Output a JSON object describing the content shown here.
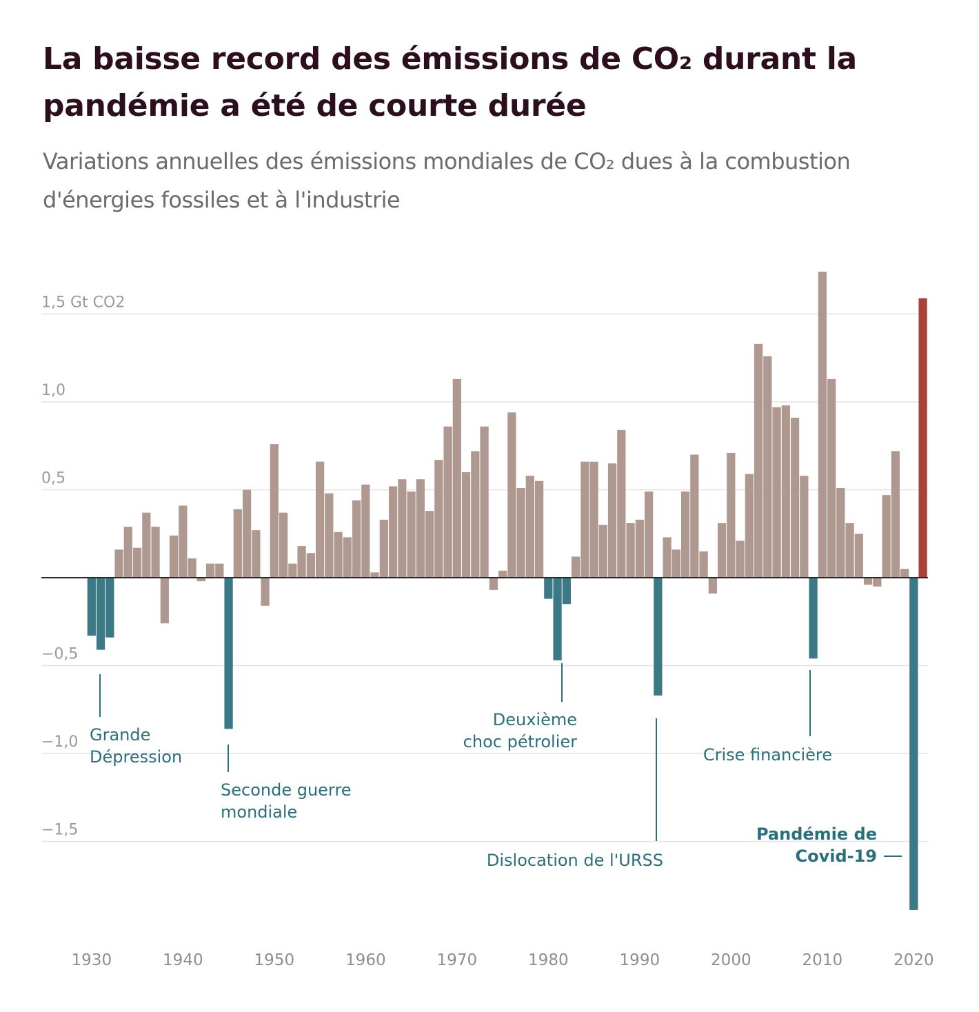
{
  "title": "La baisse record des émissions de CO₂ durant la pandémie a été de courte durée",
  "subtitle": "Variations annuelles des émissions mondiales de CO₂ dues à la combustion d'énergies fossiles et à l'industrie",
  "chart_data": {
    "type": "bar",
    "title": "La baisse record des émissions de CO₂ durant la pandémie a été de courte durée",
    "subtitle": "Variations annuelles des émissions mondiales de CO₂ dues à la combustion d'énergies fossiles et à l'industrie",
    "unit": "Gt CO2",
    "ylim": [
      -1.85,
      1.75
    ],
    "yticks": [
      {
        "value": 1.5,
        "label": "1,5 Gt CO2"
      },
      {
        "value": 1.0,
        "label": "1,0"
      },
      {
        "value": 0.5,
        "label": "0,5"
      },
      {
        "value": -0.5,
        "label": "−0,5"
      },
      {
        "value": -1.0,
        "label": "−1,0"
      },
      {
        "value": -1.5,
        "label": "−1,5"
      }
    ],
    "xticks": [
      {
        "value": 1930,
        "label": "1930"
      },
      {
        "value": 1940,
        "label": "1940"
      },
      {
        "value": 1950,
        "label": "1950"
      },
      {
        "value": 1960,
        "label": "1960"
      },
      {
        "value": 1970,
        "label": "1970"
      },
      {
        "value": 1980,
        "label": "1980"
      },
      {
        "value": 1990,
        "label": "1990"
      },
      {
        "value": 2000,
        "label": "2000"
      },
      {
        "value": 2010,
        "label": "2010"
      },
      {
        "value": 2020,
        "label": "2020"
      }
    ],
    "first_year": 1926,
    "values": [
      0,
      0,
      0,
      0,
      -0.33,
      -0.41,
      -0.34,
      0.16,
      0.29,
      0.17,
      0.37,
      0.29,
      -0.26,
      0.24,
      0.41,
      0.11,
      -0.02,
      0.08,
      0.08,
      -0.86,
      0.39,
      0.5,
      0.27,
      -0.16,
      0.76,
      0.37,
      0.08,
      0.18,
      0.14,
      0.66,
      0.48,
      0.26,
      0.23,
      0.44,
      0.53,
      0.03,
      0.33,
      0.52,
      0.56,
      0.49,
      0.56,
      0.38,
      0.67,
      0.86,
      1.13,
      0.6,
      0.72,
      0.86,
      -0.07,
      0.04,
      0.94,
      0.51,
      0.58,
      0.55,
      -0.12,
      -0.47,
      -0.15,
      0.12,
      0.66,
      0.66,
      0.3,
      0.65,
      0.84,
      0.31,
      0.33,
      0.49,
      -0.67,
      0.23,
      0.16,
      0.49,
      0.7,
      0.15,
      -0.09,
      0.31,
      0.71,
      0.21,
      0.59,
      1.33,
      1.26,
      0.97,
      0.98,
      0.91,
      0.58,
      -0.46,
      1.74,
      1.13,
      0.51,
      0.31,
      0.25,
      -0.04,
      -0.05,
      0.47,
      0.72,
      0.05,
      -1.89,
      1.59
    ],
    "highlight_years": {
      "negative_events": [
        1930,
        1931,
        1932,
        1945,
        1980,
        1981,
        1982,
        1992,
        2009,
        2020
      ],
      "rebound": [
        2021
      ]
    },
    "colors": {
      "default": "#ae9890",
      "event": "#3a7985",
      "rebound": "#a8413a",
      "annotation": "#2c6f7b",
      "grid": "#e2e2e2",
      "zero": "#2a2a2a"
    },
    "annotations": [
      {
        "id": "grande-depression",
        "year": 1931,
        "lines": [
          "Grande",
          "Dépression"
        ],
        "bold": false
      },
      {
        "id": "seconde-guerre",
        "year": 1945,
        "lines": [
          "Seconde guerre",
          "mondiale"
        ],
        "bold": false
      },
      {
        "id": "choc-petrolier",
        "year": 1981,
        "lines": [
          "Deuxième",
          "choc pétrolier"
        ],
        "bold": false
      },
      {
        "id": "dislocation-urss",
        "year": 1992,
        "lines": [
          "Dislocation de l'URSS"
        ],
        "bold": false
      },
      {
        "id": "crise-financiere",
        "year": 2009,
        "lines": [
          "Crise financière"
        ],
        "bold": false
      },
      {
        "id": "pandemie",
        "year": 2020,
        "lines": [
          "Pandémie de",
          "Covid-19"
        ],
        "bold": true
      }
    ]
  }
}
